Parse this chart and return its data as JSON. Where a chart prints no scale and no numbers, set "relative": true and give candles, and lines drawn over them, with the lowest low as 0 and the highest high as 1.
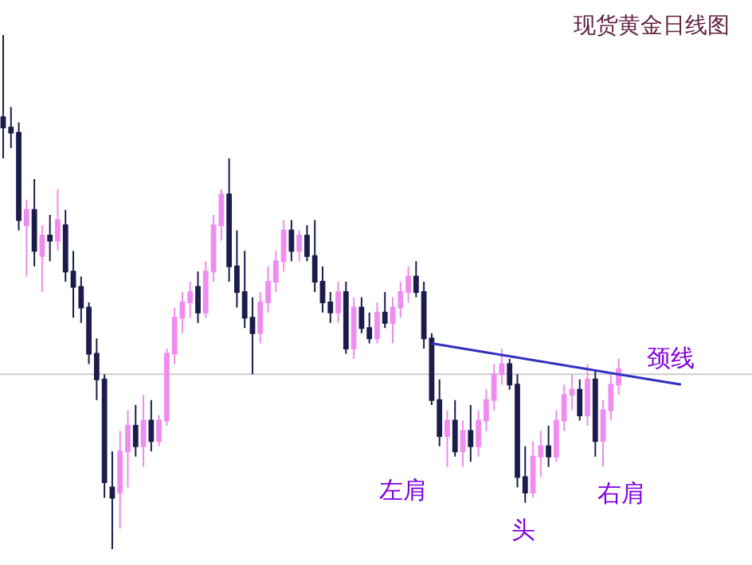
{
  "chart_data": {
    "type": "candlestick",
    "title": "现货黄金日线图",
    "relative": true,
    "categories": [
      null,
      null,
      null,
      null,
      null,
      null,
      null,
      null,
      null,
      null,
      null,
      null,
      null,
      null,
      null,
      null,
      null,
      null,
      null,
      null,
      null,
      null,
      null,
      null,
      null,
      null,
      null,
      null,
      null,
      null,
      null,
      null,
      null,
      null,
      null,
      null,
      null,
      null,
      null,
      null,
      null,
      null,
      null,
      null,
      null,
      null,
      null,
      null,
      null,
      null,
      null,
      null,
      null,
      null,
      null,
      null,
      null,
      null,
      null,
      null,
      null,
      null,
      null,
      null,
      null,
      null,
      null,
      null,
      null,
      null,
      null,
      null,
      null,
      null,
      null,
      null,
      null,
      null,
      null,
      null,
      null,
      null,
      null,
      null,
      null,
      null,
      null,
      null
    ],
    "ohlc": [
      [
        0.84,
        1.0,
        0.76,
        0.82
      ],
      [
        0.82,
        0.86,
        0.78,
        0.81
      ],
      [
        0.81,
        0.83,
        0.62,
        0.64
      ],
      [
        0.63,
        0.68,
        0.53,
        0.66
      ],
      [
        0.66,
        0.72,
        0.55,
        0.58
      ],
      [
        0.57,
        0.63,
        0.5,
        0.61
      ],
      [
        0.61,
        0.65,
        0.56,
        0.6
      ],
      [
        0.6,
        0.7,
        0.58,
        0.64
      ],
      [
        0.63,
        0.66,
        0.52,
        0.54
      ],
      [
        0.54,
        0.58,
        0.45,
        0.51
      ],
      [
        0.51,
        0.53,
        0.44,
        0.47
      ],
      [
        0.47,
        0.48,
        0.36,
        0.38
      ],
      [
        0.38,
        0.41,
        0.29,
        0.33
      ],
      [
        0.33,
        0.34,
        0.1,
        0.13
      ],
      [
        0.12,
        0.19,
        0.0,
        0.1
      ],
      [
        0.11,
        0.23,
        0.04,
        0.19
      ],
      [
        0.19,
        0.27,
        0.12,
        0.24
      ],
      [
        0.24,
        0.28,
        0.18,
        0.2
      ],
      [
        0.2,
        0.3,
        0.16,
        0.25
      ],
      [
        0.25,
        0.29,
        0.19,
        0.21
      ],
      [
        0.21,
        0.26,
        0.2,
        0.25
      ],
      [
        0.25,
        0.39,
        0.24,
        0.38
      ],
      [
        0.38,
        0.47,
        0.36,
        0.45
      ],
      [
        0.45,
        0.5,
        0.42,
        0.48
      ],
      [
        0.48,
        0.52,
        0.45,
        0.5
      ],
      [
        0.51,
        0.54,
        0.44,
        0.46
      ],
      [
        0.46,
        0.56,
        0.45,
        0.54
      ],
      [
        0.54,
        0.65,
        0.52,
        0.63
      ],
      [
        0.63,
        0.7,
        0.6,
        0.69
      ],
      [
        0.69,
        0.76,
        0.52,
        0.55
      ],
      [
        0.55,
        0.62,
        0.47,
        0.5
      ],
      [
        0.5,
        0.58,
        0.43,
        0.45
      ],
      [
        0.45,
        0.49,
        0.34,
        0.42
      ],
      [
        0.42,
        0.5,
        0.4,
        0.48
      ],
      [
        0.48,
        0.55,
        0.46,
        0.52
      ],
      [
        0.52,
        0.58,
        0.5,
        0.56
      ],
      [
        0.56,
        0.64,
        0.54,
        0.62
      ],
      [
        0.62,
        0.64,
        0.56,
        0.58
      ],
      [
        0.58,
        0.62,
        0.56,
        0.61
      ],
      [
        0.61,
        0.63,
        0.56,
        0.57
      ],
      [
        0.57,
        0.64,
        0.5,
        0.52
      ],
      [
        0.52,
        0.55,
        0.46,
        0.48
      ],
      [
        0.48,
        0.5,
        0.44,
        0.46
      ],
      [
        0.46,
        0.52,
        0.44,
        0.5
      ],
      [
        0.5,
        0.52,
        0.38,
        0.39
      ],
      [
        0.39,
        0.49,
        0.37,
        0.47
      ],
      [
        0.47,
        0.49,
        0.42,
        0.43
      ],
      [
        0.43,
        0.46,
        0.4,
        0.41
      ],
      [
        0.41,
        0.48,
        0.4,
        0.46
      ],
      [
        0.46,
        0.5,
        0.43,
        0.44
      ],
      [
        0.44,
        0.49,
        0.4,
        0.47
      ],
      [
        0.47,
        0.52,
        0.45,
        0.5
      ],
      [
        0.5,
        0.55,
        0.48,
        0.53
      ],
      [
        0.53,
        0.56,
        0.49,
        0.5
      ],
      [
        0.5,
        0.52,
        0.39,
        0.41
      ],
      [
        0.41,
        0.42,
        0.28,
        0.29
      ],
      [
        0.29,
        0.33,
        0.2,
        0.22
      ],
      [
        0.22,
        0.27,
        0.16,
        0.25
      ],
      [
        0.25,
        0.29,
        0.18,
        0.19
      ],
      [
        0.19,
        0.25,
        0.16,
        0.23
      ],
      [
        0.23,
        0.28,
        0.17,
        0.2
      ],
      [
        0.2,
        0.27,
        0.18,
        0.25
      ],
      [
        0.25,
        0.31,
        0.23,
        0.29
      ],
      [
        0.29,
        0.36,
        0.27,
        0.34
      ],
      [
        0.34,
        0.39,
        0.32,
        0.36
      ],
      [
        0.36,
        0.37,
        0.31,
        0.32
      ],
      [
        0.32,
        0.34,
        0.12,
        0.14
      ],
      [
        0.14,
        0.2,
        0.09,
        0.11
      ],
      [
        0.11,
        0.21,
        0.1,
        0.18
      ],
      [
        0.18,
        0.23,
        0.14,
        0.2
      ],
      [
        0.2,
        0.24,
        0.16,
        0.18
      ],
      [
        0.18,
        0.27,
        0.17,
        0.25
      ],
      [
        0.25,
        0.32,
        0.23,
        0.3
      ],
      [
        0.3,
        0.34,
        0.27,
        0.31
      ],
      [
        0.31,
        0.33,
        0.25,
        0.26
      ],
      [
        0.26,
        0.36,
        0.24,
        0.33
      ],
      [
        0.33,
        0.35,
        0.18,
        0.21
      ],
      [
        0.21,
        0.29,
        0.16,
        0.27
      ],
      [
        0.27,
        0.34,
        0.25,
        0.32
      ],
      [
        0.32,
        0.37,
        0.3,
        0.35
      ],
      null,
      null,
      null,
      null,
      null,
      null,
      null,
      null
    ],
    "colors": [
      "#1c1c4c",
      "#1c1c4c",
      "#1c1c4c",
      "#f08cf0",
      "#1c1c4c",
      "#f08cf0",
      "#1c1c4c",
      "#f08cf0",
      "#1c1c4c",
      "#1c1c4c",
      "#1c1c4c",
      "#1c1c4c",
      "#1c1c4c",
      "#1c1c4c",
      "#1c1c4c",
      "#f08cf0",
      "#f08cf0",
      "#1c1c4c",
      "#f08cf0",
      "#1c1c4c",
      "#f08cf0",
      "#f08cf0",
      "#f08cf0",
      "#f08cf0",
      "#f08cf0",
      "#1c1c4c",
      "#f08cf0",
      "#f08cf0",
      "#f08cf0",
      "#1c1c4c",
      "#1c1c4c",
      "#1c1c4c",
      "#1c1c4c",
      "#f08cf0",
      "#f08cf0",
      "#f08cf0",
      "#f08cf0",
      "#1c1c4c",
      "#f08cf0",
      "#1c1c4c",
      "#1c1c4c",
      "#1c1c4c",
      "#1c1c4c",
      "#f08cf0",
      "#1c1c4c",
      "#f08cf0",
      "#1c1c4c",
      "#1c1c4c",
      "#f08cf0",
      "#1c1c4c",
      "#f08cf0",
      "#f08cf0",
      "#f08cf0",
      "#1c1c4c",
      "#1c1c4c",
      "#1c1c4c",
      "#1c1c4c",
      "#f08cf0",
      "#1c1c4c",
      "#f08cf0",
      "#1c1c4c",
      "#f08cf0",
      "#f08cf0",
      "#f08cf0",
      "#f08cf0",
      "#1c1c4c",
      "#1c1c4c",
      "#1c1c4c",
      "#f08cf0",
      "#f08cf0",
      "#1c1c4c",
      "#f08cf0",
      "#f08cf0",
      "#f08cf0",
      "#1c1c4c",
      "#f08cf0",
      "#1c1c4c",
      "#f08cf0",
      "#f08cf0",
      "#f08cf0",
      null,
      null,
      null,
      null,
      null,
      null,
      null,
      null
    ],
    "series": [
      {
        "type": "line",
        "name": "颈线",
        "color": "#3030c0",
        "values": [
          null,
          null,
          null,
          null,
          null,
          null,
          null,
          null,
          null,
          null,
          null,
          null,
          null,
          null,
          null,
          null,
          null,
          null,
          null,
          null,
          null,
          null,
          null,
          null,
          null,
          null,
          null,
          null,
          null,
          null,
          null,
          null,
          null,
          null,
          null,
          null,
          null,
          null,
          null,
          null,
          null,
          null,
          null,
          null,
          null,
          null,
          null,
          null,
          null,
          null,
          null,
          null,
          null,
          null,
          null,
          0.4,
          null,
          null,
          null,
          null,
          null,
          null,
          null,
          null,
          null,
          null,
          null,
          null,
          null,
          null,
          null,
          null,
          null,
          null,
          null,
          null,
          null,
          null,
          null,
          null,
          null,
          null,
          null,
          null,
          null,
          null,
          null,
          0.32
        ]
      }
    ],
    "ref_lines": [
      {
        "axis": "y",
        "value": 0.34,
        "color": "#cccccc"
      }
    ],
    "annotations": [
      "左肩",
      "头",
      "右肩"
    ]
  }
}
